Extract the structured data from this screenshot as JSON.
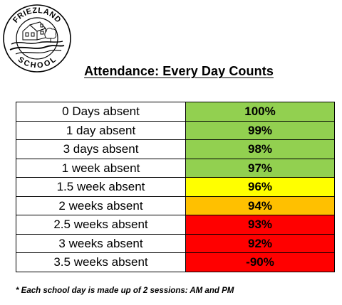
{
  "logo": {
    "top_text": "FRIEZLAND",
    "bottom_text": "SCHOOL"
  },
  "title": "Attendance: Every Day Counts",
  "rows": [
    {
      "absence": "0 Days absent",
      "attendance": "100%",
      "color": "#92d050"
    },
    {
      "absence": "1 day absent",
      "attendance": "99%",
      "color": "#92d050"
    },
    {
      "absence": "3 days absent",
      "attendance": "98%",
      "color": "#92d050"
    },
    {
      "absence": "1 week absent",
      "attendance": "97%",
      "color": "#92d050"
    },
    {
      "absence": "1.5 week absent",
      "attendance": "96%",
      "color": "#ffff00"
    },
    {
      "absence": "2 weeks absent",
      "attendance": "94%",
      "color": "#ffc000"
    },
    {
      "absence": "2.5 weeks absent",
      "attendance": "93%",
      "color": "#ff0000"
    },
    {
      "absence": "3 weeks absent",
      "attendance": "92%",
      "color": "#ff0000"
    },
    {
      "absence": "3.5 weeks absent",
      "attendance": "-90%",
      "color": "#ff0000"
    }
  ],
  "footnote": "* Each school day is made up of 2 sessions: AM and PM"
}
